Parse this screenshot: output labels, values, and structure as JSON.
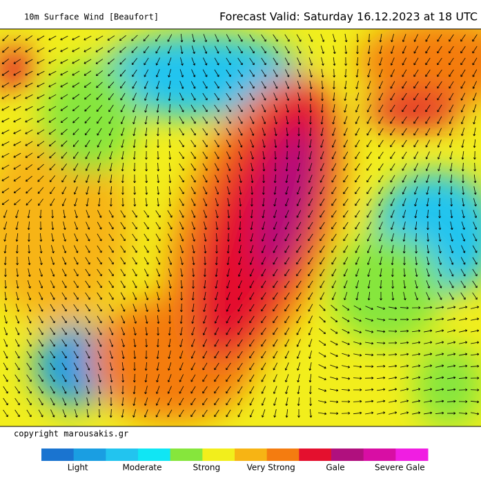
{
  "header": {
    "title": "10m Surface Wind [Beaufort]",
    "forecast": "Forecast Valid:  Saturday 16.12.2023 at 18 UTC"
  },
  "copyright": "copyright marousakis.gr",
  "legend": {
    "colors": [
      "#1a74d0",
      "#1a9ee2",
      "#22c4ef",
      "#10e6f4",
      "#86e63c",
      "#f2ee1c",
      "#f7b414",
      "#f47c10",
      "#e4102e",
      "#b0107e",
      "#d80ea4",
      "#f01ee2"
    ],
    "labels": [
      "Light",
      "Moderate",
      "Strong",
      "Very Strong",
      "Gale",
      "Severe Gale"
    ]
  }
}
